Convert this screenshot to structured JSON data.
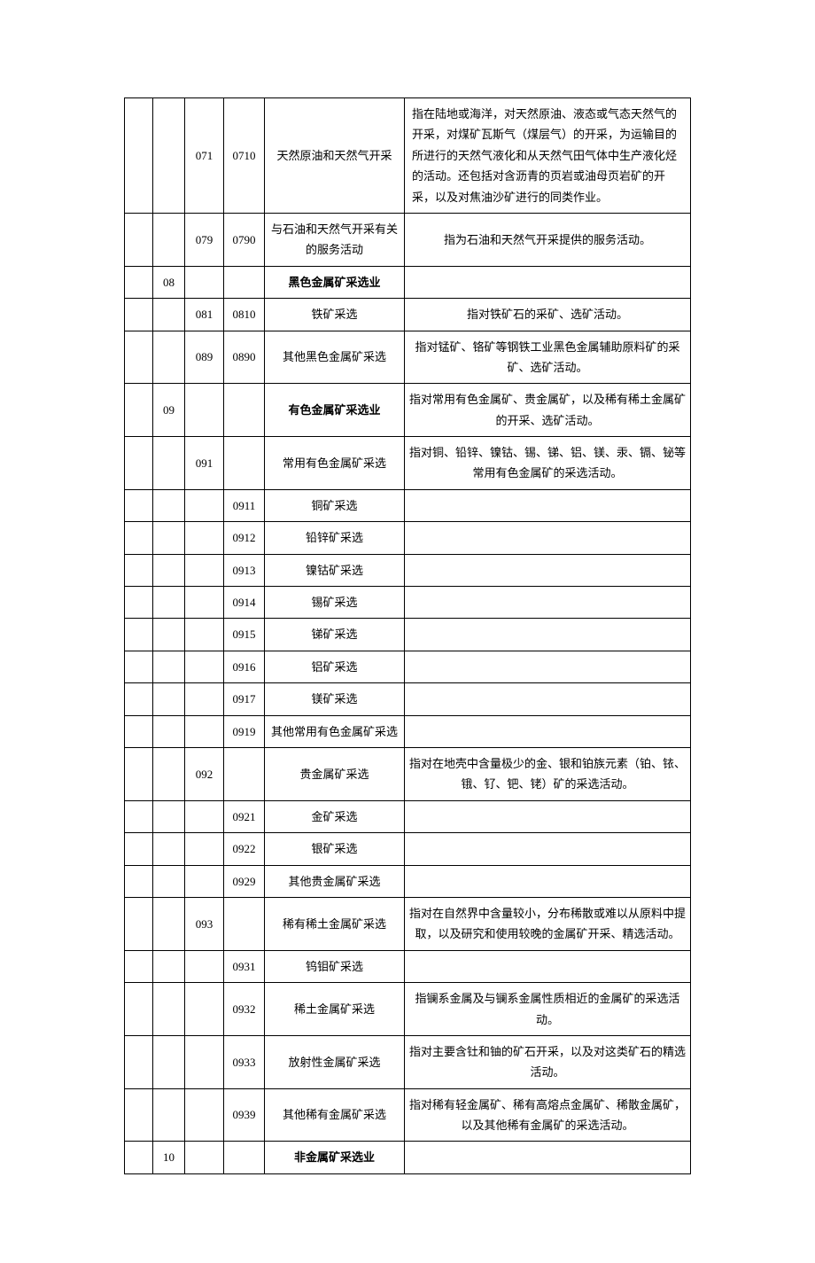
{
  "rows": [
    {
      "col1": "",
      "col2": "",
      "col3": "071",
      "col4": "0710",
      "name": "天然原油和天然气开采",
      "name_bold": false,
      "desc": "指在陆地或海洋，对天然原油、液态或气态天然气的开采，对煤矿瓦斯气（煤层气）的开采，为运输目的所进行的天然气液化和从天然气田气体中生产液化烃的活动。还包括对含沥青的页岩或油母页岩矿的开采，以及对焦油沙矿进行的同类作业。",
      "desc_align": "left"
    },
    {
      "col1": "",
      "col2": "",
      "col3": "079",
      "col4": "0790",
      "name": "与石油和天然气开采有关的服务活动",
      "name_bold": false,
      "desc": "指为石油和天然气开采提供的服务活动。",
      "desc_align": "center"
    },
    {
      "col1": "",
      "col2": "08",
      "col3": "",
      "col4": "",
      "name": "黑色金属矿采选业",
      "name_bold": true,
      "desc": "",
      "desc_align": "left"
    },
    {
      "col1": "",
      "col2": "",
      "col3": "081",
      "col4": "0810",
      "name": "铁矿采选",
      "name_bold": false,
      "desc": "指对铁矿石的采矿、选矿活动。",
      "desc_align": "center"
    },
    {
      "col1": "",
      "col2": "",
      "col3": "089",
      "col4": "0890",
      "name": "其他黑色金属矿采选",
      "name_bold": false,
      "desc": "指对锰矿、铬矿等钢铁工业黑色金属辅助原料矿的采矿、选矿活动。",
      "desc_align": "center"
    },
    {
      "col1": "",
      "col2": "09",
      "col3": "",
      "col4": "",
      "name": "有色金属矿采选业",
      "name_bold": true,
      "desc": "指对常用有色金属矿、贵金属矿，以及稀有稀土金属矿的开采、选矿活动。",
      "desc_align": "center"
    },
    {
      "col1": "",
      "col2": "",
      "col3": "091",
      "col4": "",
      "name": "常用有色金属矿采选",
      "name_bold": false,
      "desc": "指对铜、铅锌、镍钴、锡、锑、铝、镁、汞、镉、铋等常用有色金属矿的采选活动。",
      "desc_align": "center"
    },
    {
      "col1": "",
      "col2": "",
      "col3": "",
      "col4": "0911",
      "name": "铜矿采选",
      "name_bold": false,
      "desc": "",
      "desc_align": "left"
    },
    {
      "col1": "",
      "col2": "",
      "col3": "",
      "col4": "0912",
      "name": "铅锌矿采选",
      "name_bold": false,
      "desc": "",
      "desc_align": "left"
    },
    {
      "col1": "",
      "col2": "",
      "col3": "",
      "col4": "0913",
      "name": "镍钴矿采选",
      "name_bold": false,
      "desc": "",
      "desc_align": "left"
    },
    {
      "col1": "",
      "col2": "",
      "col3": "",
      "col4": "0914",
      "name": "锡矿采选",
      "name_bold": false,
      "desc": "",
      "desc_align": "left"
    },
    {
      "col1": "",
      "col2": "",
      "col3": "",
      "col4": "0915",
      "name": "锑矿采选",
      "name_bold": false,
      "desc": "",
      "desc_align": "left"
    },
    {
      "col1": "",
      "col2": "",
      "col3": "",
      "col4": "0916",
      "name": "铝矿采选",
      "name_bold": false,
      "desc": "",
      "desc_align": "left"
    },
    {
      "col1": "",
      "col2": "",
      "col3": "",
      "col4": "0917",
      "name": "镁矿采选",
      "name_bold": false,
      "desc": "",
      "desc_align": "left"
    },
    {
      "col1": "",
      "col2": "",
      "col3": "",
      "col4": "0919",
      "name": "其他常用有色金属矿采选",
      "name_bold": false,
      "desc": "",
      "desc_align": "left"
    },
    {
      "col1": "",
      "col2": "",
      "col3": "092",
      "col4": "",
      "name": "贵金属矿采选",
      "name_bold": false,
      "desc": "指对在地壳中含量极少的金、银和铂族元素（铂、铱、锇、钌、钯、铑）矿的采选活动。",
      "desc_align": "center"
    },
    {
      "col1": "",
      "col2": "",
      "col3": "",
      "col4": "0921",
      "name": "金矿采选",
      "name_bold": false,
      "desc": "",
      "desc_align": "left"
    },
    {
      "col1": "",
      "col2": "",
      "col3": "",
      "col4": "0922",
      "name": "银矿采选",
      "name_bold": false,
      "desc": "",
      "desc_align": "left"
    },
    {
      "col1": "",
      "col2": "",
      "col3": "",
      "col4": "0929",
      "name": "其他贵金属矿采选",
      "name_bold": false,
      "desc": "",
      "desc_align": "left"
    },
    {
      "col1": "",
      "col2": "",
      "col3": "093",
      "col4": "",
      "name": "稀有稀土金属矿采选",
      "name_bold": false,
      "desc": "指对在自然界中含量较小，分布稀散或难以从原料中提取，以及研究和使用较晚的金属矿开采、精选活动。",
      "desc_align": "center"
    },
    {
      "col1": "",
      "col2": "",
      "col3": "",
      "col4": "0931",
      "name": "钨钼矿采选",
      "name_bold": false,
      "desc": "",
      "desc_align": "left"
    },
    {
      "col1": "",
      "col2": "",
      "col3": "",
      "col4": "0932",
      "name": "稀土金属矿采选",
      "name_bold": false,
      "desc": "指镧系金属及与镧系金属性质相近的金属矿的采选活动。",
      "desc_align": "center"
    },
    {
      "col1": "",
      "col2": "",
      "col3": "",
      "col4": "0933",
      "name": "放射性金属矿采选",
      "name_bold": false,
      "desc": "指对主要含钍和铀的矿石开采，以及对这类矿石的精选活动。",
      "desc_align": "center"
    },
    {
      "col1": "",
      "col2": "",
      "col3": "",
      "col4": "0939",
      "name": "其他稀有金属矿采选",
      "name_bold": false,
      "desc": "指对稀有轻金属矿、稀有高熔点金属矿、稀散金属矿，以及其他稀有金属矿的采选活动。",
      "desc_align": "center"
    },
    {
      "col1": "",
      "col2": "10",
      "col3": "",
      "col4": "",
      "name": "非金属矿采选业",
      "name_bold": true,
      "desc": "",
      "desc_align": "left"
    }
  ]
}
